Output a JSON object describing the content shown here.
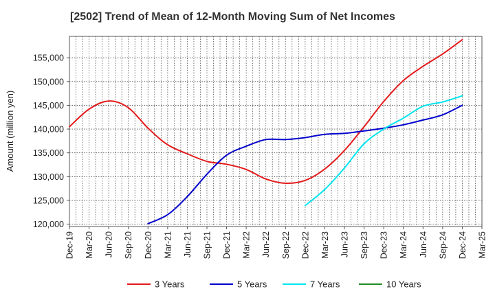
{
  "chart_data": {
    "type": "line",
    "title": "[2502]  Trend of Mean of 12-Month Moving Sum of Net Incomes",
    "ylabel": "Amount (million yen)",
    "xlabel": "",
    "ylim": [
      119500,
      159500
    ],
    "yticks": [
      120000,
      125000,
      130000,
      135000,
      140000,
      145000,
      150000,
      155000
    ],
    "ytick_labels": [
      "120,000",
      "125,000",
      "130,000",
      "135,000",
      "140,000",
      "145,000",
      "150,000",
      "155,000"
    ],
    "xticks": [
      "Dec-19",
      "Mar-20",
      "Jun-20",
      "Sep-20",
      "Dec-20",
      "Mar-21",
      "Jun-21",
      "Sep-21",
      "Dec-21",
      "Mar-22",
      "Jun-22",
      "Sep-22",
      "Dec-22",
      "Mar-23",
      "Jun-23",
      "Sep-23",
      "Dec-23",
      "Mar-24",
      "Jun-24",
      "Sep-24",
      "Dec-24",
      "Mar-25"
    ],
    "grid": true,
    "legend_position": "bottom",
    "series": [
      {
        "name": "3 Years",
        "color": "#e31a1c",
        "points": [
          [
            "Dec-19",
            140500
          ],
          [
            "Mar-20",
            144200
          ],
          [
            "Jun-20",
            145900
          ],
          [
            "Sep-20",
            144500
          ],
          [
            "Dec-20",
            140200
          ],
          [
            "Mar-21",
            136700
          ],
          [
            "Jun-21",
            134800
          ],
          [
            "Sep-21",
            133200
          ],
          [
            "Dec-21",
            132600
          ],
          [
            "Mar-22",
            131500
          ],
          [
            "Jun-22",
            129500
          ],
          [
            "Sep-22",
            128600
          ],
          [
            "Dec-22",
            129200
          ],
          [
            "Mar-23",
            131600
          ],
          [
            "Jun-23",
            135500
          ],
          [
            "Sep-23",
            140500
          ],
          [
            "Dec-23",
            145800
          ],
          [
            "Mar-24",
            150200
          ],
          [
            "Jun-24",
            153200
          ],
          [
            "Sep-24",
            155800
          ],
          [
            "Dec-24",
            158800
          ]
        ]
      },
      {
        "name": "5 Years",
        "color": "#0000cc",
        "points": [
          [
            "Dec-20",
            120100
          ],
          [
            "Mar-21",
            122000
          ],
          [
            "Jun-21",
            125800
          ],
          [
            "Sep-21",
            130500
          ],
          [
            "Dec-21",
            134500
          ],
          [
            "Mar-22",
            136400
          ],
          [
            "Jun-22",
            137800
          ],
          [
            "Sep-22",
            137800
          ],
          [
            "Dec-22",
            138200
          ],
          [
            "Mar-23",
            138900
          ],
          [
            "Jun-23",
            139100
          ],
          [
            "Sep-23",
            139600
          ],
          [
            "Dec-23",
            140200
          ],
          [
            "Mar-24",
            140900
          ],
          [
            "Jun-24",
            141900
          ],
          [
            "Sep-24",
            143000
          ],
          [
            "Dec-24",
            145000
          ]
        ]
      },
      {
        "name": "7 Years",
        "color": "#00e5ee",
        "points": [
          [
            "Dec-22",
            123900
          ],
          [
            "Mar-23",
            127300
          ],
          [
            "Jun-23",
            131800
          ],
          [
            "Sep-23",
            136900
          ],
          [
            "Dec-23",
            140000
          ],
          [
            "Mar-24",
            142300
          ],
          [
            "Jun-24",
            144800
          ],
          [
            "Sep-24",
            145700
          ],
          [
            "Dec-24",
            147000
          ]
        ]
      },
      {
        "name": "10 Years",
        "color": "#228b22",
        "points": []
      }
    ]
  }
}
